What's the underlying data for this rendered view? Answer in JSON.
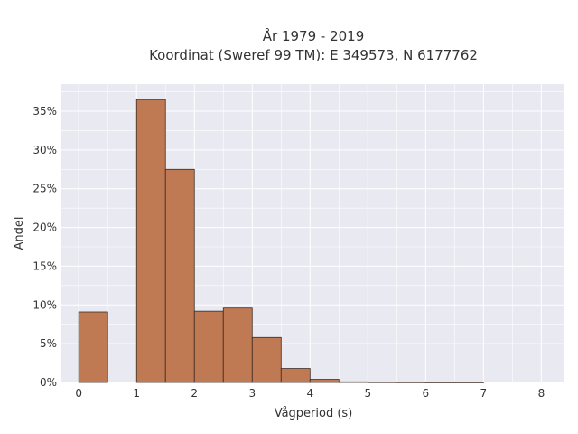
{
  "chart_data": {
    "type": "bar",
    "title_lines": [
      "År 1979 - 2019",
      "Koordinat (Sweref 99 TM): E 349573, N 6177762"
    ],
    "xlabel": "Vågperiod (s)",
    "ylabel": "Andel",
    "xlim": [
      -0.3,
      8.4
    ],
    "ylim": [
      0,
      0.385
    ],
    "x_ticks": [
      0,
      1,
      2,
      3,
      4,
      5,
      6,
      7,
      8
    ],
    "x_tick_labels": [
      "0",
      "1",
      "2",
      "3",
      "4",
      "5",
      "6",
      "7",
      "8"
    ],
    "y_ticks": [
      0,
      0.05,
      0.1,
      0.15,
      0.2,
      0.25,
      0.3,
      0.35
    ],
    "y_tick_labels": [
      "0%",
      "5%",
      "10%",
      "15%",
      "20%",
      "25%",
      "30%",
      "35%"
    ],
    "bin_width": 0.5,
    "bins": [
      {
        "x0": 0.0,
        "value": 0.091
      },
      {
        "x0": 0.5,
        "value": 0.0
      },
      {
        "x0": 1.0,
        "value": 0.365
      },
      {
        "x0": 1.5,
        "value": 0.275
      },
      {
        "x0": 2.0,
        "value": 0.092
      },
      {
        "x0": 2.5,
        "value": 0.096
      },
      {
        "x0": 3.0,
        "value": 0.058
      },
      {
        "x0": 3.5,
        "value": 0.018
      },
      {
        "x0": 4.0,
        "value": 0.004
      },
      {
        "x0": 4.5,
        "value": 0.0008
      },
      {
        "x0": 5.0,
        "value": 0.0005
      },
      {
        "x0": 5.5,
        "value": 0.0004
      },
      {
        "x0": 6.0,
        "value": 0.0003
      },
      {
        "x0": 6.5,
        "value": 0.0003
      }
    ],
    "grid": true,
    "colors": {
      "bar_fill": "#bf7a53",
      "bar_edge": "#3d2a20",
      "plot_background": "#e9e9f1",
      "grid": "#ffffff"
    }
  }
}
